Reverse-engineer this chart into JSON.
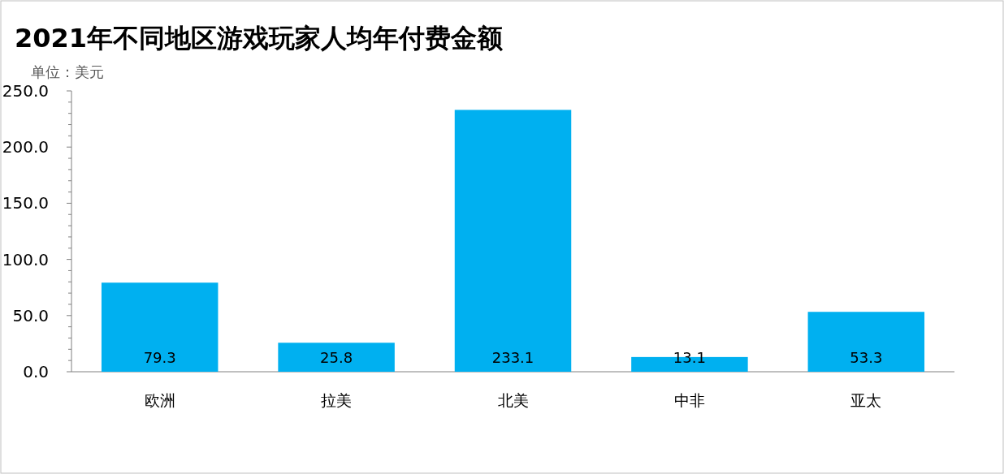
{
  "chart_data": {
    "type": "bar",
    "title": "2021年不同地区游戏玩家人均年付费金额",
    "ylabel": "单位：美元",
    "categories": [
      "欧洲",
      "拉美",
      "北美",
      "中非",
      "亚太"
    ],
    "values": [
      79.3,
      25.8,
      233.1,
      13.1,
      53.3
    ],
    "color": "#00b0f0",
    "data_labels": true,
    "grid": false,
    "ylim": [
      0,
      250
    ],
    "yticks": [
      {
        "value": 0,
        "label": "0.0"
      },
      {
        "value": 10,
        "label": null
      },
      {
        "value": 20,
        "label": null
      },
      {
        "value": 30,
        "label": null
      },
      {
        "value": 40,
        "label": null
      },
      {
        "value": 50,
        "label": "50.0"
      },
      {
        "value": 60,
        "label": null
      },
      {
        "value": 70,
        "label": null
      },
      {
        "value": 80,
        "label": null
      },
      {
        "value": 90,
        "label": null
      },
      {
        "value": 100,
        "label": "100.0"
      },
      {
        "value": 110,
        "label": null
      },
      {
        "value": 120,
        "label": null
      },
      {
        "value": 130,
        "label": null
      },
      {
        "value": 140,
        "label": null
      },
      {
        "value": 150,
        "label": "150.0"
      },
      {
        "value": 160,
        "label": null
      },
      {
        "value": 170,
        "label": null
      },
      {
        "value": 180,
        "label": null
      },
      {
        "value": 190,
        "label": null
      },
      {
        "value": 200,
        "label": "200.0"
      },
      {
        "value": 210,
        "label": null
      },
      {
        "value": 220,
        "label": null
      },
      {
        "value": 230,
        "label": null
      },
      {
        "value": 240,
        "label": null
      },
      {
        "value": 250,
        "label": "250.0"
      }
    ]
  }
}
